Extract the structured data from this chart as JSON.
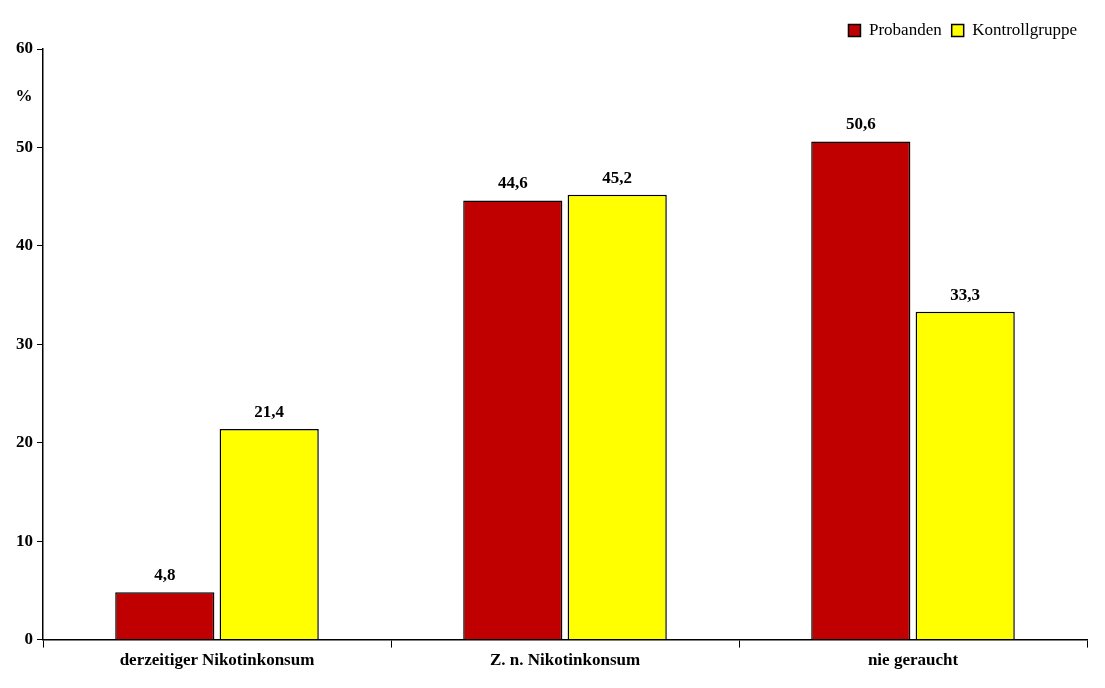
{
  "chart_data": {
    "type": "bar",
    "ylabel": "%",
    "categories": [
      "derzeitiger Nikotinkonsum",
      "Z. n. Nikotinkonsum",
      "nie geraucht"
    ],
    "series": [
      {
        "name": "Probanden",
        "color": "#c00000",
        "values": [
          4.8,
          44.6,
          50.6
        ],
        "value_labels": [
          "4,8",
          "44,6",
          "50,6"
        ]
      },
      {
        "name": "Kontrollgruppe",
        "color": "#ffff00",
        "values": [
          21.4,
          45.2,
          33.3
        ],
        "value_labels": [
          "21,4",
          "45,2",
          "33,3"
        ]
      }
    ],
    "ylim": [
      0,
      60
    ],
    "yticks": [
      0,
      10,
      20,
      30,
      40,
      50,
      60
    ],
    "grid": false,
    "legend": "top right"
  }
}
